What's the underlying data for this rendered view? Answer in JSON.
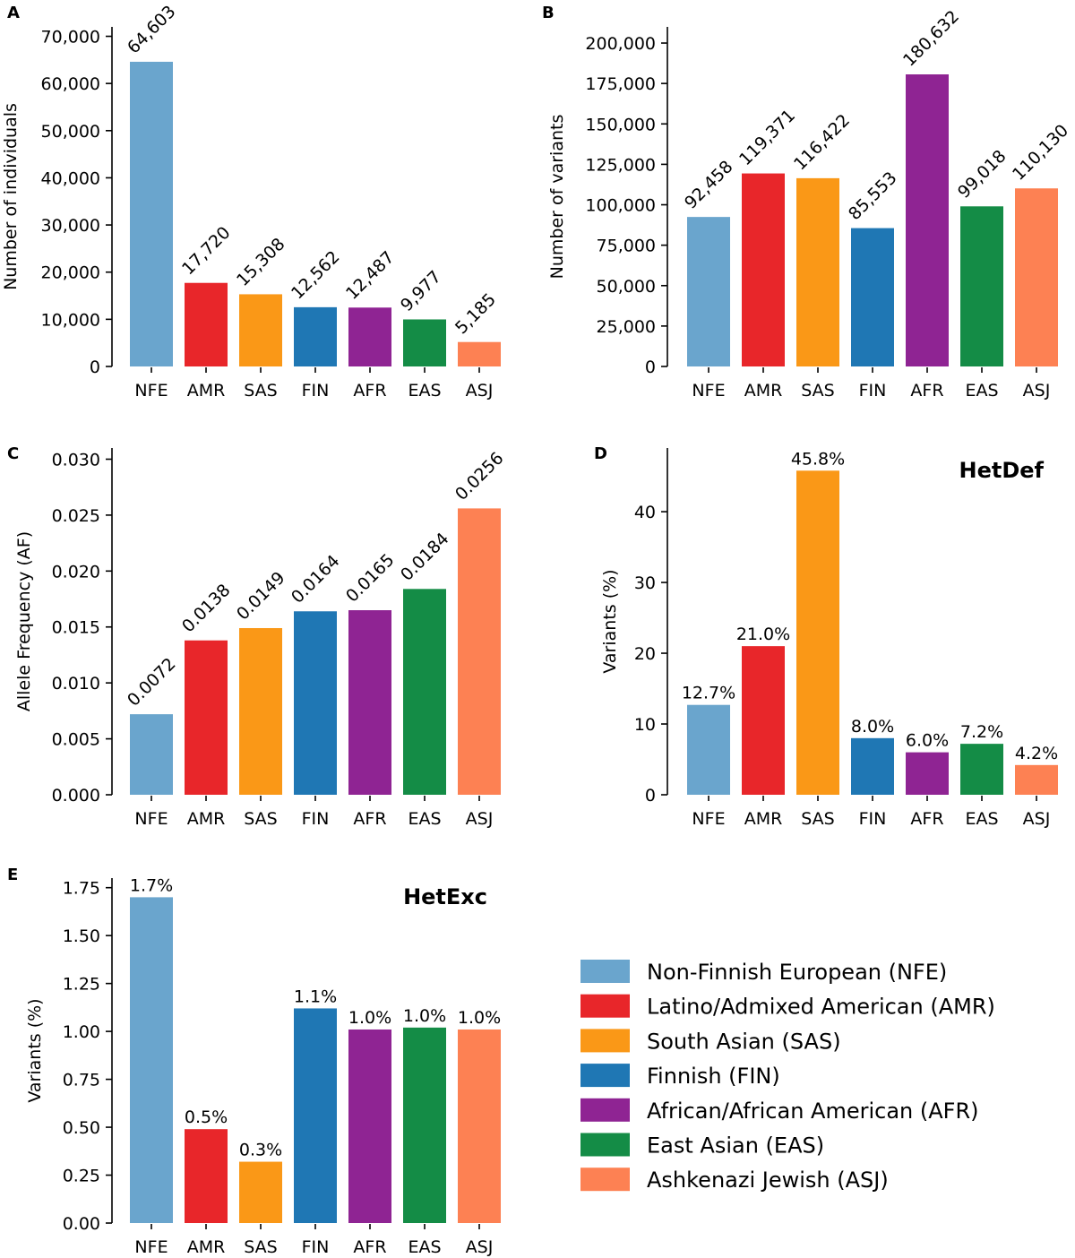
{
  "populations": {
    "codes": [
      "NFE",
      "AMR",
      "SAS",
      "FIN",
      "AFR",
      "EAS",
      "ASJ"
    ],
    "colors": [
      "#6aa5cd",
      "#e8262a",
      "#fa9817",
      "#1f77b4",
      "#8f2493",
      "#148c46",
      "#fd8153"
    ]
  },
  "legend": [
    {
      "label": "Non-Finnish European (NFE)",
      "color": "#6aa5cd"
    },
    {
      "label": "Latino/Admixed American (AMR)",
      "color": "#e8262a"
    },
    {
      "label": "South Asian (SAS)",
      "color": "#fa9817"
    },
    {
      "label": "Finnish (FIN)",
      "color": "#1f77b4"
    },
    {
      "label": "African/African American (AFR)",
      "color": "#8f2493"
    },
    {
      "label": "East Asian (EAS)",
      "color": "#148c46"
    },
    {
      "label": "Ashkenazi Jewish (ASJ)",
      "color": "#fd8153"
    }
  ],
  "chart_data": [
    {
      "panel": "A",
      "type": "bar",
      "categories": [
        "NFE",
        "AMR",
        "SAS",
        "FIN",
        "AFR",
        "EAS",
        "ASJ"
      ],
      "values": [
        64603,
        17720,
        15308,
        12562,
        12487,
        9977,
        5185
      ],
      "data_labels": [
        "64,603",
        "17,720",
        "15,308",
        "12,562",
        "12,487",
        "9,977",
        "5,185"
      ],
      "label_rotation": "rotated",
      "ylabel": "Number of individuals",
      "ylim": [
        0,
        72000
      ],
      "yticks": [
        0,
        10000,
        20000,
        30000,
        40000,
        50000,
        60000,
        70000
      ],
      "ytick_labels": [
        "0",
        "10,000",
        "20,000",
        "30,000",
        "40,000",
        "50,000",
        "60,000",
        "70,000"
      ],
      "annotation": ""
    },
    {
      "panel": "B",
      "type": "bar",
      "categories": [
        "NFE",
        "AMR",
        "SAS",
        "FIN",
        "AFR",
        "EAS",
        "ASJ"
      ],
      "values": [
        92458,
        119371,
        116422,
        85553,
        180632,
        99018,
        110130
      ],
      "data_labels": [
        "92,458",
        "119,371",
        "116,422",
        "85,553",
        "180,632",
        "99,018",
        "110,130"
      ],
      "label_rotation": "rotated",
      "ylabel": "Number of variants",
      "ylim": [
        0,
        210000
      ],
      "yticks": [
        0,
        25000,
        50000,
        75000,
        100000,
        125000,
        150000,
        175000,
        200000
      ],
      "ytick_labels": [
        "0",
        "25,000",
        "50,000",
        "75,000",
        "100,000",
        "125,000",
        "150,000",
        "175,000",
        "200,000"
      ],
      "annotation": ""
    },
    {
      "panel": "C",
      "type": "bar",
      "categories": [
        "NFE",
        "AMR",
        "SAS",
        "FIN",
        "AFR",
        "EAS",
        "ASJ"
      ],
      "values": [
        0.0072,
        0.0138,
        0.0149,
        0.0164,
        0.0165,
        0.0184,
        0.0256
      ],
      "data_labels": [
        "0.0072",
        "0.0138",
        "0.0149",
        "0.0164",
        "0.0165",
        "0.0184",
        "0.0256"
      ],
      "label_rotation": "rotated",
      "ylabel": "Allele Frequency (AF)",
      "ylim": [
        0,
        0.031
      ],
      "yticks": [
        0,
        0.005,
        0.01,
        0.015,
        0.02,
        0.025,
        0.03
      ],
      "ytick_labels": [
        "0.000",
        "0.005",
        "0.010",
        "0.015",
        "0.020",
        "0.025",
        "0.030"
      ],
      "annotation": ""
    },
    {
      "panel": "D",
      "type": "bar",
      "categories": [
        "NFE",
        "AMR",
        "SAS",
        "FIN",
        "AFR",
        "EAS",
        "ASJ"
      ],
      "values": [
        12.7,
        21.0,
        45.8,
        8.0,
        6.0,
        7.2,
        4.2
      ],
      "data_labels": [
        "12.7%",
        "21.0%",
        "45.8%",
        "8.0%",
        "6.0%",
        "7.2%",
        "4.2%"
      ],
      "label_rotation": "horizontal",
      "ylabel": "Variants (%)",
      "ylim": [
        0,
        49
      ],
      "yticks": [
        0,
        10,
        20,
        30,
        40
      ],
      "ytick_labels": [
        "0",
        "10",
        "20",
        "30",
        "40"
      ],
      "annotation": "HetDef"
    },
    {
      "panel": "E",
      "type": "bar",
      "categories": [
        "NFE",
        "AMR",
        "SAS",
        "FIN",
        "AFR",
        "EAS",
        "ASJ"
      ],
      "values": [
        1.7,
        0.49,
        0.32,
        1.12,
        1.01,
        1.02,
        1.01
      ],
      "data_labels": [
        "1.7%",
        "0.5%",
        "0.3%",
        "1.1%",
        "1.0%",
        "1.0%",
        "1.0%"
      ],
      "label_rotation": "horizontal",
      "ylabel": "Variants (%)",
      "ylim": [
        0,
        1.8
      ],
      "yticks": [
        0,
        0.25,
        0.5,
        0.75,
        1.0,
        1.25,
        1.5,
        1.75
      ],
      "ytick_labels": [
        "0.00",
        "0.25",
        "0.50",
        "0.75",
        "1.00",
        "1.25",
        "1.50",
        "1.75"
      ],
      "annotation": "HetExc"
    }
  ]
}
